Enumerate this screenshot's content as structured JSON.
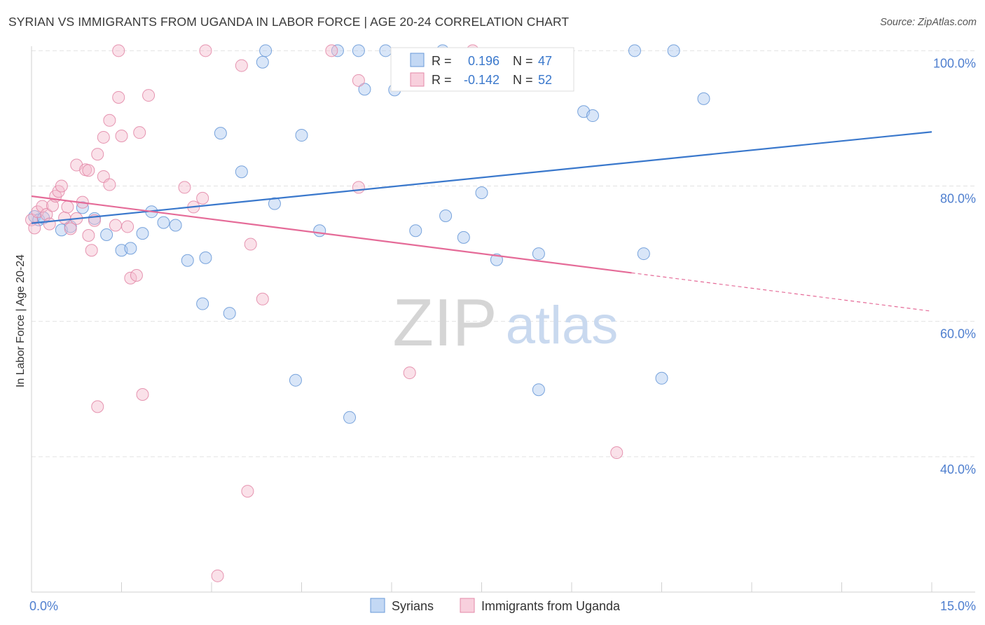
{
  "colors": {
    "syrians_fill": "#aac8f0",
    "syrians_stroke": "#6a9ad8",
    "syrians_line": "#3a78cc",
    "uganda_fill": "#f5bccf",
    "uganda_stroke": "#e389a8",
    "uganda_line": "#e56b98",
    "tick_label": "#4f7fcf",
    "grid": "#e2e2e2",
    "axis": "#d0d0d0",
    "watermark_zip": "#d5d5d5",
    "watermark_atlas": "#c9d9ef"
  },
  "chart_data": {
    "type": "scatter",
    "title": "SYRIAN VS IMMIGRANTS FROM UGANDA IN LABOR FORCE | AGE 20-24 CORRELATION CHART",
    "source": "Source: ZipAtlas.com",
    "xlabel": "",
    "ylabel": "In Labor Force | Age 20-24",
    "xlim": [
      0,
      15
    ],
    "ylim": [
      20,
      102
    ],
    "x_tick_labels": [
      {
        "value": 0,
        "label": "0.0%"
      },
      {
        "value": 15,
        "label": "15.0%"
      }
    ],
    "y_tick_labels": [
      {
        "value": 100,
        "label": "100.0%"
      },
      {
        "value": 80,
        "label": "80.0%"
      },
      {
        "value": 60,
        "label": "60.0%"
      },
      {
        "value": 40,
        "label": "40.0%"
      }
    ],
    "y_gridlines": [
      100,
      80,
      60,
      40
    ],
    "x_minor_ticks": [
      1.5,
      3.0,
      4.5,
      6.0,
      7.5,
      9.0,
      10.5,
      12.0,
      13.5,
      15.0
    ],
    "watermark": {
      "part1": "ZIP",
      "part2": "atlas"
    },
    "legend_stats": [
      {
        "r_label": "R =",
        "r_value": "0.196",
        "n_label": "N =",
        "n_value": "47"
      },
      {
        "r_label": "R =",
        "r_value": "-0.142",
        "n_label": "N =",
        "n_value": "52"
      }
    ],
    "series": [
      {
        "name": "Syrians",
        "trend": {
          "x0": 0.0,
          "y0": 74.5,
          "x1": 15.0,
          "y1": 88.0,
          "solid_until": 15.0
        },
        "points": [
          [
            0.05,
            75.5
          ],
          [
            0.12,
            75.0
          ],
          [
            0.2,
            75.3
          ],
          [
            0.5,
            73.5
          ],
          [
            0.65,
            74.0
          ],
          [
            0.85,
            76.8
          ],
          [
            1.05,
            75.2
          ],
          [
            1.25,
            72.8
          ],
          [
            1.5,
            70.5
          ],
          [
            1.65,
            70.8
          ],
          [
            1.85,
            73.0
          ],
          [
            2.0,
            76.2
          ],
          [
            2.2,
            74.6
          ],
          [
            2.4,
            74.2
          ],
          [
            2.6,
            69.0
          ],
          [
            2.85,
            62.6
          ],
          [
            2.9,
            69.4
          ],
          [
            3.15,
            87.8
          ],
          [
            3.3,
            61.2
          ],
          [
            3.5,
            82.1
          ],
          [
            3.85,
            98.3
          ],
          [
            3.9,
            100.0
          ],
          [
            4.05,
            77.4
          ],
          [
            4.4,
            51.3
          ],
          [
            4.5,
            87.5
          ],
          [
            4.8,
            73.4
          ],
          [
            5.1,
            100.0
          ],
          [
            5.3,
            45.8
          ],
          [
            5.45,
            100.0
          ],
          [
            5.55,
            94.3
          ],
          [
            5.9,
            100.0
          ],
          [
            6.05,
            94.2
          ],
          [
            6.4,
            73.4
          ],
          [
            6.85,
            100.0
          ],
          [
            6.9,
            75.6
          ],
          [
            7.2,
            72.4
          ],
          [
            7.5,
            79.0
          ],
          [
            7.75,
            69.1
          ],
          [
            8.45,
            70.0
          ],
          [
            8.45,
            49.9
          ],
          [
            9.2,
            91.0
          ],
          [
            9.35,
            90.4
          ],
          [
            10.05,
            100.0
          ],
          [
            10.2,
            70.0
          ],
          [
            10.5,
            51.6
          ],
          [
            10.7,
            100.0
          ],
          [
            11.2,
            92.9
          ]
        ]
      },
      {
        "name": "Immigrants from Uganda",
        "trend": {
          "x0": 0.0,
          "y0": 78.5,
          "x1": 15.0,
          "y1": 61.5,
          "solid_until": 10.0
        },
        "points": [
          [
            0.0,
            75.0
          ],
          [
            0.05,
            73.8
          ],
          [
            0.1,
            76.2
          ],
          [
            0.18,
            77.0
          ],
          [
            0.25,
            75.8
          ],
          [
            0.3,
            74.4
          ],
          [
            0.35,
            77.1
          ],
          [
            0.4,
            78.5
          ],
          [
            0.45,
            79.2
          ],
          [
            0.5,
            80.0
          ],
          [
            0.55,
            75.3
          ],
          [
            0.6,
            76.9
          ],
          [
            0.65,
            73.7
          ],
          [
            0.75,
            75.2
          ],
          [
            0.75,
            83.1
          ],
          [
            0.85,
            77.6
          ],
          [
            0.9,
            82.4
          ],
          [
            0.95,
            72.7
          ],
          [
            0.95,
            82.3
          ],
          [
            1.0,
            70.5
          ],
          [
            1.05,
            74.9
          ],
          [
            1.1,
            84.7
          ],
          [
            1.1,
            47.4
          ],
          [
            1.2,
            81.4
          ],
          [
            1.2,
            87.2
          ],
          [
            1.3,
            89.7
          ],
          [
            1.3,
            80.2
          ],
          [
            1.4,
            74.2
          ],
          [
            1.45,
            93.1
          ],
          [
            1.45,
            100.0
          ],
          [
            1.5,
            87.4
          ],
          [
            1.6,
            74.0
          ],
          [
            1.65,
            66.4
          ],
          [
            1.75,
            66.8
          ],
          [
            1.8,
            87.9
          ],
          [
            1.85,
            49.2
          ],
          [
            1.95,
            93.4
          ],
          [
            2.55,
            79.8
          ],
          [
            2.7,
            76.9
          ],
          [
            2.85,
            78.2
          ],
          [
            2.9,
            100.0
          ],
          [
            3.1,
            22.4
          ],
          [
            3.5,
            97.8
          ],
          [
            3.6,
            34.9
          ],
          [
            3.65,
            71.4
          ],
          [
            3.85,
            63.3
          ],
          [
            5.0,
            100.0
          ],
          [
            5.45,
            95.6
          ],
          [
            5.45,
            79.8
          ],
          [
            6.3,
            52.4
          ],
          [
            7.35,
            100.0
          ],
          [
            9.75,
            40.6
          ]
        ]
      }
    ]
  }
}
